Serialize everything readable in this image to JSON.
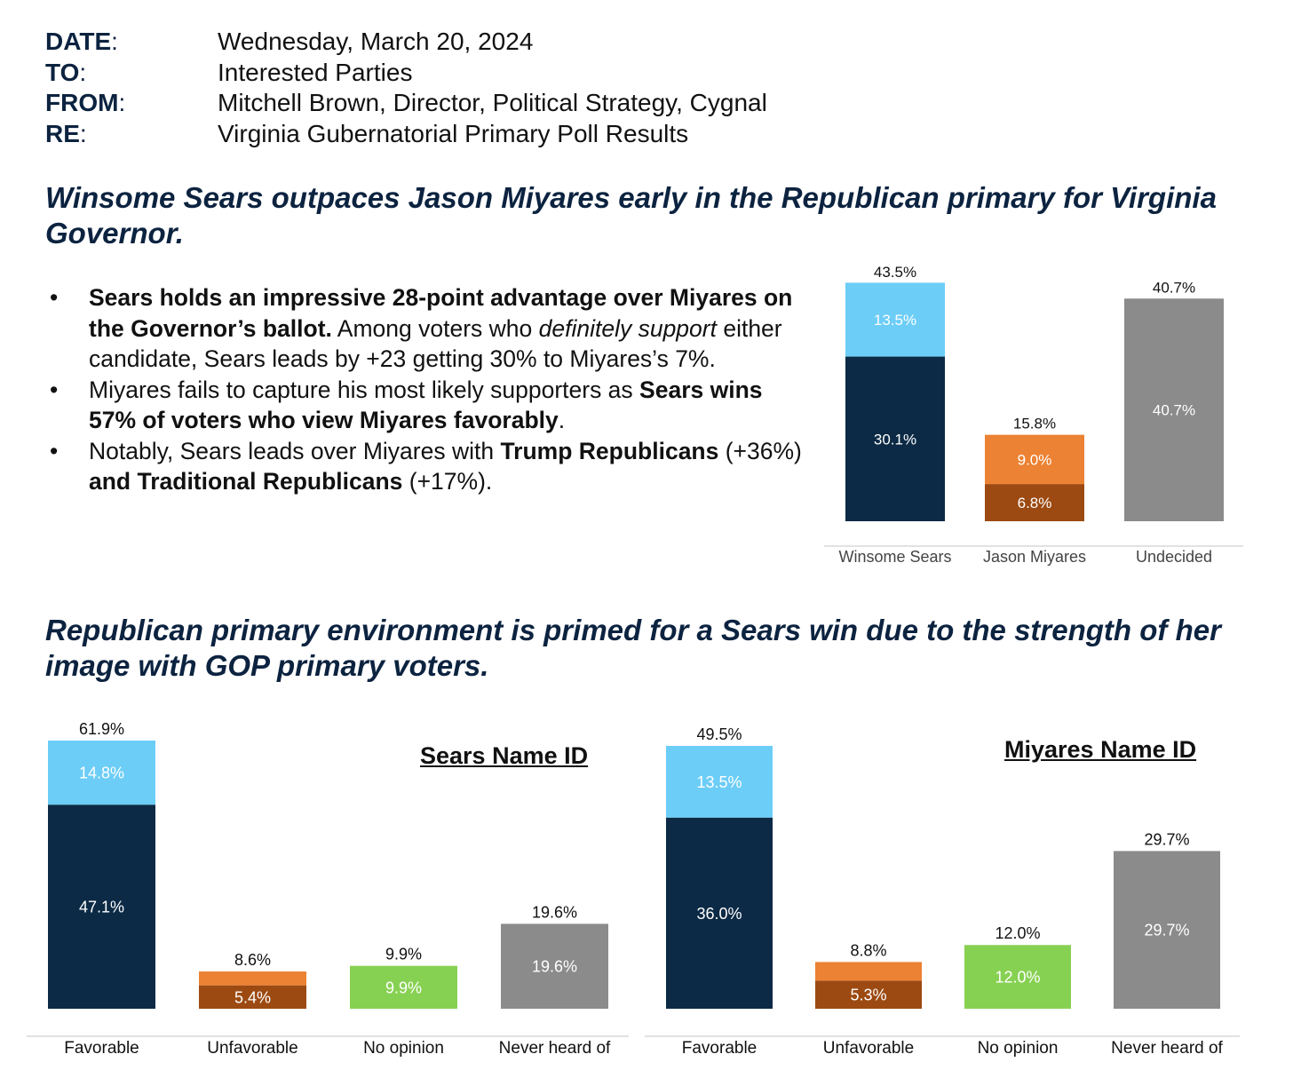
{
  "memo": [
    {
      "key": "DATE",
      "value": "Wednesday, March 20, 2024"
    },
    {
      "key": "TO",
      "value": "Interested Parties"
    },
    {
      "key": "FROM",
      "value": "Mitchell Brown, Director, Political Strategy, Cygnal"
    },
    {
      "key": "RE",
      "value": "Virginia Gubernatorial Primary Poll Results"
    }
  ],
  "headline1": "Winsome Sears outpaces Jason Miyares early in the Republican primary for Virginia Governor.",
  "bullets": [
    [
      {
        "t": "Sears holds an impressive 28-point advantage over Miyares on the Governor’s ballot.",
        "b": true
      },
      {
        "t": " Among voters who "
      },
      {
        "t": "definitely support",
        "i": true
      },
      {
        "t": " either candidate, Sears leads by +23 getting 30% to Miyares’s 7%."
      }
    ],
    [
      {
        "t": "Miyares fails to capture his most likely supporters as "
      },
      {
        "t": "Sears wins 57% of voters who view Miyares favorably",
        "b": true
      },
      {
        "t": "."
      }
    ],
    [
      {
        "t": "Notably, Sears leads over Miyares with "
      },
      {
        "t": "Trump Republicans",
        "b": true
      },
      {
        "t": " (+36%) "
      },
      {
        "t": "and Traditional Republicans",
        "b": true
      },
      {
        "t": " (+17%)."
      }
    ]
  ],
  "headline2": "Republican primary environment is primed for a Sears win due to the strength of her image with GOP primary voters.",
  "chart_data": [
    {
      "type": "bar",
      "stacked": true,
      "title": "",
      "categories": [
        "Winsome Sears",
        "Jason Miyares",
        "Undecided"
      ],
      "ylim": [
        0,
        43.5
      ],
      "grid": false,
      "legend": "none",
      "bars": [
        {
          "category": "Winsome Sears",
          "total": 43.5,
          "total_label": "43.5%",
          "segments": [
            {
              "value": 30.1,
              "label": "30.1%",
              "color": "#0c2a45"
            },
            {
              "value": 13.5,
              "label": "13.5%",
              "color": "#6ccdf7"
            }
          ]
        },
        {
          "category": "Jason Miyares",
          "total": 15.8,
          "total_label": "15.8%",
          "segments": [
            {
              "value": 6.8,
              "label": "6.8%",
              "color": "#9c4a12"
            },
            {
              "value": 9.0,
              "label": "9.0%",
              "color": "#ec8233"
            }
          ]
        },
        {
          "category": "Undecided",
          "total": 40.7,
          "total_label": "40.7%",
          "segments": [
            {
              "value": 40.7,
              "label": "40.7%",
              "color": "#8b8b8b"
            }
          ]
        }
      ]
    },
    {
      "type": "bar",
      "stacked": true,
      "title": "Sears Name ID",
      "categories": [
        "Favorable",
        "Unfavorable",
        "No opinion",
        "Never heard of"
      ],
      "ylim": [
        0,
        61.9
      ],
      "grid": false,
      "legend": "none",
      "bars": [
        {
          "category": "Favorable",
          "total": 61.9,
          "total_label": "61.9%",
          "segments": [
            {
              "value": 47.1,
              "label": "47.1%",
              "color": "#0c2a45"
            },
            {
              "value": 14.8,
              "label": "14.8%",
              "color": "#6ccdf7"
            }
          ]
        },
        {
          "category": "Unfavorable",
          "total": 8.6,
          "total_label": "8.6%",
          "segments": [
            {
              "value": 5.4,
              "label": "5.4%",
              "color": "#9c4a12"
            },
            {
              "value": 3.2,
              "label": "",
              "color": "#ec8233"
            }
          ]
        },
        {
          "category": "No opinion",
          "total": 9.9,
          "total_label": "9.9%",
          "segments": [
            {
              "value": 9.9,
              "label": "9.9%",
              "color": "#87d152"
            }
          ]
        },
        {
          "category": "Never heard of",
          "total": 19.6,
          "total_label": "19.6%",
          "segments": [
            {
              "value": 19.6,
              "label": "19.6%",
              "color": "#8b8b8b"
            }
          ]
        }
      ]
    },
    {
      "type": "bar",
      "stacked": true,
      "title": "Miyares Name ID",
      "categories": [
        "Favorable",
        "Unfavorable",
        "No opinion",
        "Never heard of"
      ],
      "ylim": [
        0,
        49.5
      ],
      "grid": false,
      "legend": "none",
      "bars": [
        {
          "category": "Favorable",
          "total": 49.5,
          "total_label": "49.5%",
          "segments": [
            {
              "value": 36.0,
              "label": "36.0%",
              "color": "#0c2a45"
            },
            {
              "value": 13.5,
              "label": "13.5%",
              "color": "#6ccdf7"
            }
          ]
        },
        {
          "category": "Unfavorable",
          "total": 8.8,
          "total_label": "8.8%",
          "segments": [
            {
              "value": 5.3,
              "label": "5.3%",
              "color": "#9c4a12"
            },
            {
              "value": 3.5,
              "label": "",
              "color": "#ec8233"
            }
          ]
        },
        {
          "category": "No opinion",
          "total": 12.0,
          "total_label": "12.0%",
          "segments": [
            {
              "value": 12.0,
              "label": "12.0%",
              "color": "#87d152"
            }
          ]
        },
        {
          "category": "Never heard of",
          "total": 29.7,
          "total_label": "29.7%",
          "segments": [
            {
              "value": 29.7,
              "label": "29.7%",
              "color": "#8b8b8b"
            }
          ]
        }
      ]
    }
  ]
}
